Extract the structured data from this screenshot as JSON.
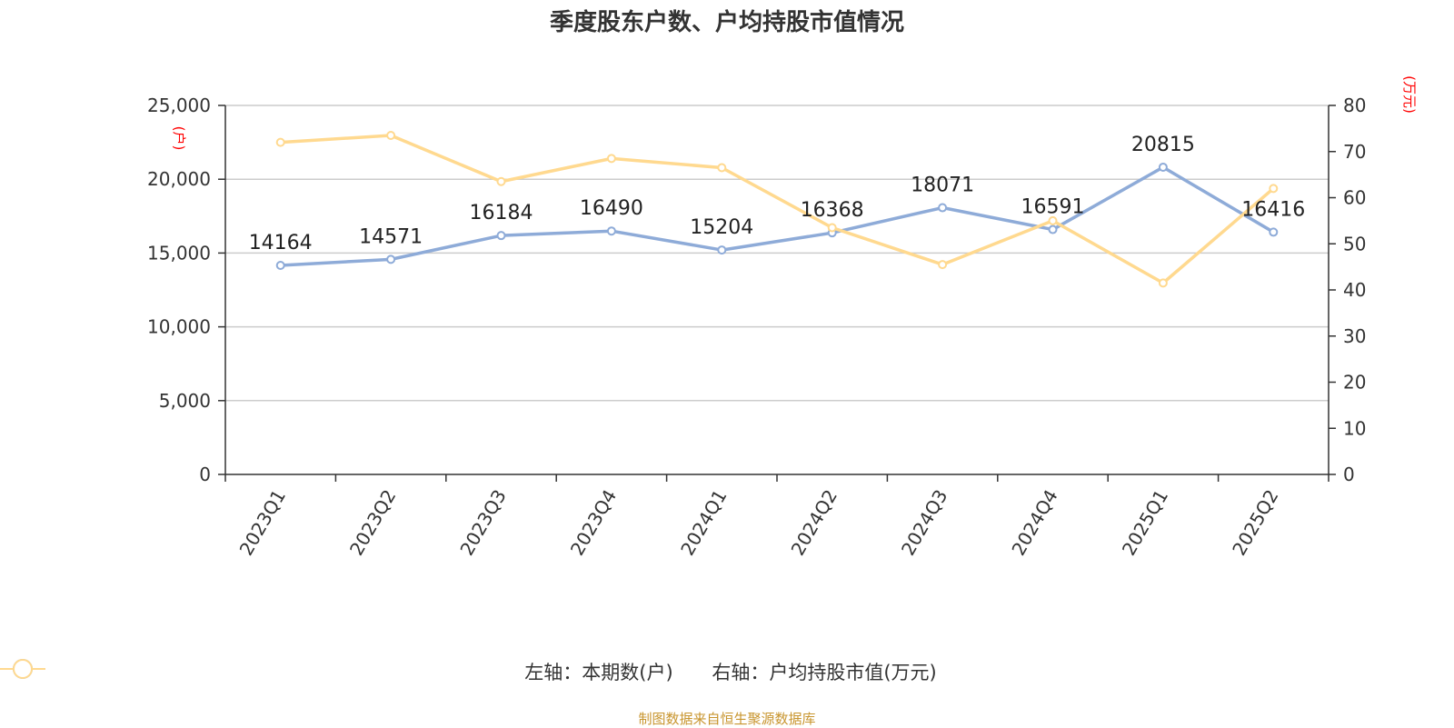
{
  "chart_data": {
    "type": "line",
    "title": "季度股东户数、户均持股市值情况",
    "categories": [
      "2023Q1",
      "2023Q2",
      "2023Q3",
      "2023Q4",
      "2024Q1",
      "2024Q2",
      "2024Q3",
      "2024Q4",
      "2025Q1",
      "2025Q2"
    ],
    "left_axis": {
      "unit": "(户)",
      "ylim": [
        0,
        25000
      ],
      "ticks": [
        "0",
        "5,000",
        "10,000",
        "15,000",
        "20,000",
        "25,000"
      ],
      "tick_values": [
        0,
        5000,
        10000,
        15000,
        20000,
        25000
      ]
    },
    "right_axis": {
      "unit": "(万元)",
      "ylim": [
        0,
        80
      ],
      "ticks": [
        "0",
        "10",
        "20",
        "30",
        "40",
        "50",
        "60",
        "70",
        "80"
      ],
      "tick_values": [
        0,
        10,
        20,
        30,
        40,
        50,
        60,
        70,
        80
      ]
    },
    "series": [
      {
        "name": "左轴：本期数(户)",
        "axis": "left",
        "color": "#8eabd8",
        "values": [
          14164,
          14571,
          16184,
          16490,
          15204,
          16368,
          18071,
          16591,
          20815,
          16416
        ],
        "labels": [
          "14164",
          "14571",
          "16184",
          "16490",
          "15204",
          "16368",
          "18071",
          "16591",
          "20815",
          "16416"
        ]
      },
      {
        "name": "右轴：户均持股市值(万元)",
        "axis": "right",
        "color": "#ffd98f",
        "values": [
          72.0,
          73.5,
          63.5,
          68.5,
          66.5,
          53.5,
          45.5,
          55.0,
          41.5,
          62.0
        ]
      }
    ],
    "grid": true,
    "legend_position": "bottom"
  },
  "source_text": "制图数据来自恒生聚源数据库"
}
